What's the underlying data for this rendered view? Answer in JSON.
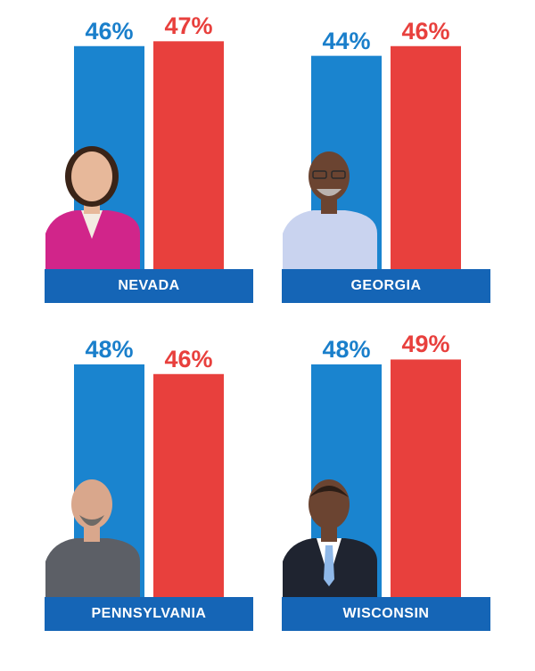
{
  "colors": {
    "dem_bar": "#1a84cf",
    "rep_bar": "#e8403d",
    "banner": "#1565b6"
  },
  "chart_data": [
    {
      "type": "bar",
      "title": "NEVADA",
      "categories": [
        "blue",
        "red"
      ],
      "values": [
        46,
        47
      ],
      "value_labels": [
        "46%",
        "47%"
      ],
      "ylim": [
        0,
        50
      ],
      "photo": "candidate-photo-woman"
    },
    {
      "type": "bar",
      "title": "GEORGIA",
      "categories": [
        "blue",
        "red"
      ],
      "values": [
        44,
        46
      ],
      "value_labels": [
        "44%",
        "46%"
      ],
      "ylim": [
        0,
        50
      ],
      "photo": "candidate-photo-man-glasses"
    },
    {
      "type": "bar",
      "title": "PENNSYLVANIA",
      "categories": [
        "blue",
        "red"
      ],
      "values": [
        48,
        46
      ],
      "value_labels": [
        "48%",
        "46%"
      ],
      "ylim": [
        0,
        50
      ],
      "photo": "candidate-photo-man-bald"
    },
    {
      "type": "bar",
      "title": "WISCONSIN",
      "categories": [
        "blue",
        "red"
      ],
      "values": [
        48,
        49
      ],
      "value_labels": [
        "48%",
        "49%"
      ],
      "ylim": [
        0,
        50
      ],
      "photo": "candidate-photo-man-suit"
    }
  ]
}
